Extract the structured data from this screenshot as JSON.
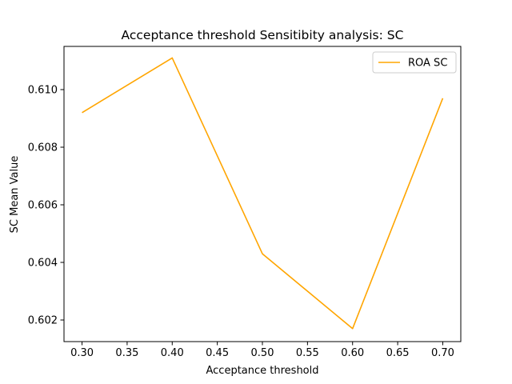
{
  "chart_data": {
    "type": "line",
    "title": "Acceptance threshold Sensitibity analysis: SC",
    "xlabel": "Acceptance threshold",
    "ylabel": "SC Mean Value",
    "x": [
      0.3,
      0.4,
      0.5,
      0.6,
      0.7
    ],
    "series": [
      {
        "name": "ROA SC",
        "color": "#ffa500",
        "values": [
          0.6092,
          0.6111,
          0.6043,
          0.6017,
          0.6097
        ]
      }
    ],
    "xlim": [
      0.28,
      0.72
    ],
    "ylim": [
      0.60125,
      0.6115
    ],
    "xticks": [
      "0.30",
      "0.35",
      "0.40",
      "0.45",
      "0.50",
      "0.55",
      "0.60",
      "0.65",
      "0.70"
    ],
    "yticks": [
      "0.602",
      "0.604",
      "0.606",
      "0.608",
      "0.610"
    ],
    "grid": false,
    "legend_position": "top-right"
  }
}
